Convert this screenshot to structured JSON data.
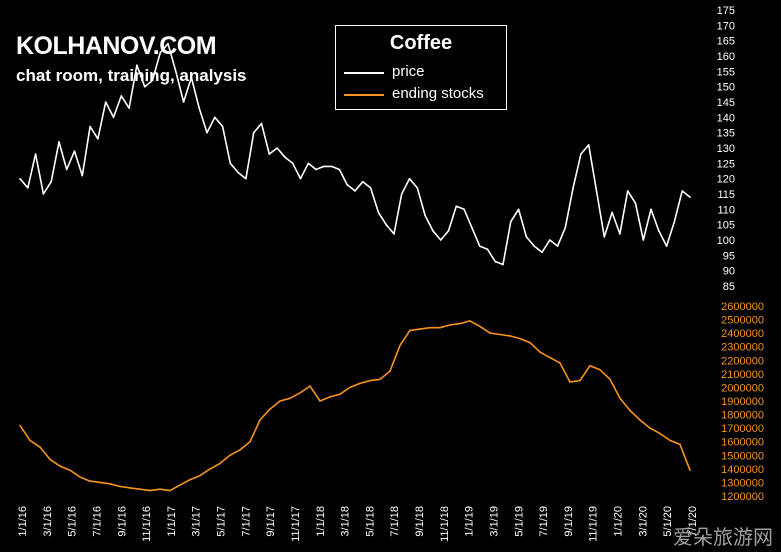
{
  "header": {
    "brand": "KOLHANOV.COM",
    "tagline": "chat room, training, analysis"
  },
  "legend": {
    "title": "Coffee",
    "items": [
      {
        "label": "price",
        "color": "#ffffff"
      },
      {
        "label": "ending stocks",
        "color": "#f7931e"
      }
    ]
  },
  "watermark": "爱朵旅游网",
  "chart_data": {
    "type": "line",
    "title": "Coffee",
    "x_labels": [
      "1/1/16",
      "3/1/16",
      "5/1/16",
      "7/1/16",
      "9/1/16",
      "11/1/16",
      "1/1/17",
      "3/1/17",
      "5/1/17",
      "7/1/17",
      "9/1/17",
      "11/1/17",
      "1/1/18",
      "3/1/18",
      "5/1/18",
      "7/1/18",
      "9/1/18",
      "11/1/18",
      "1/1/19",
      "3/1/19",
      "5/1/19",
      "7/1/19",
      "9/1/19",
      "11/1/19",
      "1/1/20",
      "3/1/20",
      "5/1/20",
      "7/1/20"
    ],
    "grid": false,
    "legend_position": "top-center",
    "series": [
      {
        "name": "price",
        "color": "#ffffff",
        "axis": "upper-right",
        "ylim": [
          85,
          175
        ],
        "yticks": [
          85,
          90,
          95,
          100,
          105,
          110,
          115,
          120,
          125,
          130,
          135,
          140,
          145,
          150,
          155,
          160,
          165,
          170,
          175
        ],
        "values": [
          120,
          117,
          128,
          115,
          119,
          132,
          123,
          129,
          121,
          137,
          133,
          145,
          140,
          147,
          143,
          157,
          150,
          152,
          161,
          164,
          155,
          145,
          153,
          143,
          135,
          140,
          137,
          125,
          122,
          120,
          135,
          138,
          128,
          130,
          127,
          125,
          120,
          125,
          123,
          124,
          124,
          123,
          118,
          116,
          119,
          117,
          109,
          105,
          102,
          115,
          120,
          117,
          108,
          103,
          100,
          103,
          111,
          110,
          104,
          98,
          97,
          93,
          92,
          106,
          110,
          101,
          98,
          96,
          100,
          98,
          104,
          117,
          128,
          131,
          116,
          101,
          109,
          102,
          116,
          112,
          100,
          110,
          103,
          98,
          106,
          116,
          114
        ]
      },
      {
        "name": "ending stocks",
        "color": "#f7931e",
        "axis": "lower-right",
        "ylim": [
          1200000,
          2600000
        ],
        "yticks": [
          1200000,
          1300000,
          1400000,
          1500000,
          1600000,
          1700000,
          1800000,
          1900000,
          2000000,
          2100000,
          2200000,
          2300000,
          2400000,
          2500000,
          2600000
        ],
        "values": [
          1720000,
          1610000,
          1560000,
          1470000,
          1420000,
          1390000,
          1340000,
          1310000,
          1300000,
          1290000,
          1270000,
          1260000,
          1250000,
          1240000,
          1250000,
          1240000,
          1280000,
          1320000,
          1350000,
          1400000,
          1440000,
          1500000,
          1540000,
          1600000,
          1760000,
          1840000,
          1900000,
          1920000,
          1960000,
          2010000,
          1900000,
          1930000,
          1950000,
          2000000,
          2030000,
          2050000,
          2060000,
          2120000,
          2310000,
          2420000,
          2430000,
          2440000,
          2440000,
          2460000,
          2470000,
          2490000,
          2450000,
          2400000,
          2390000,
          2380000,
          2360000,
          2330000,
          2260000,
          2220000,
          2180000,
          2040000,
          2050000,
          2160000,
          2130000,
          2060000,
          1920000,
          1830000,
          1760000,
          1700000,
          1660000,
          1610000,
          1580000,
          1390000
        ]
      }
    ]
  }
}
